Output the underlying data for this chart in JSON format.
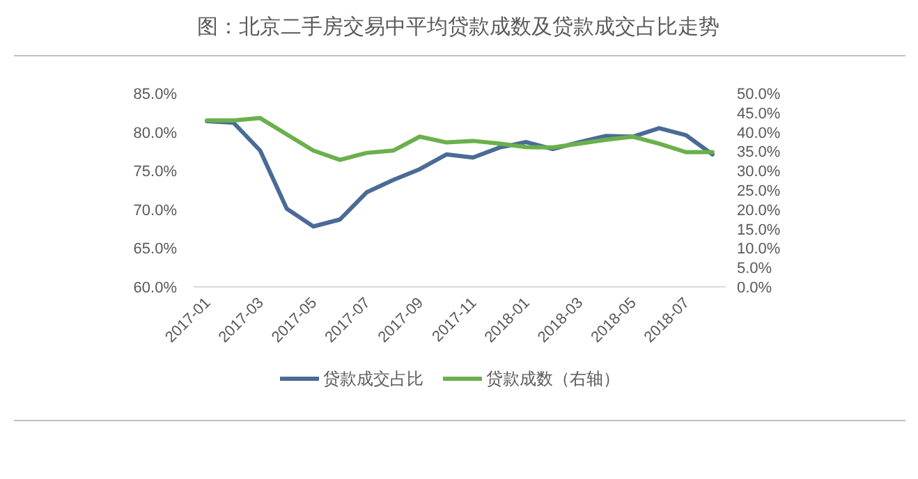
{
  "chart_data": {
    "type": "line",
    "title": "图：北京二手房交易中平均贷款成数及贷款成交占比走势",
    "categories": [
      "2017-01",
      null,
      "2017-03",
      null,
      "2017-05",
      null,
      "2017-07",
      null,
      "2017-09",
      null,
      "2017-11",
      null,
      "2018-01",
      null,
      "2018-03",
      null,
      "2018-05",
      null,
      "2018-07",
      null
    ],
    "series": [
      {
        "name": "贷款成交占比",
        "color": "#4a6b96",
        "values": [
          81.4,
          81.2,
          77.6,
          70.1,
          67.8,
          68.7,
          72.2,
          73.8,
          75.2,
          77.1,
          76.7,
          78.0,
          78.7,
          77.8,
          78.7,
          79.5,
          79.4,
          80.5,
          79.6,
          77.1
        ]
      },
      {
        "name": "贷款成数（右轴）",
        "color": "#6ab04c",
        "axis": "y2",
        "values": [
          43.0,
          43.0,
          43.6,
          39.4,
          35.2,
          32.8,
          34.6,
          35.2,
          38.8,
          37.3,
          37.7,
          37.0,
          36.1,
          36.0,
          37.0,
          38.0,
          38.8,
          37.0,
          34.8,
          34.8
        ]
      }
    ],
    "ylim": [
      60,
      85
    ],
    "yticks": [
      {
        "value": 60,
        "label": "60.0%"
      },
      {
        "value": 65,
        "label": "65.0%"
      },
      {
        "value": 70,
        "label": "70.0%"
      },
      {
        "value": 75,
        "label": "75.0%"
      },
      {
        "value": 80,
        "label": "80.0%"
      },
      {
        "value": 85,
        "label": "85.0%"
      }
    ],
    "y2lim": [
      0,
      50
    ],
    "y2ticks": [
      {
        "value": 0,
        "label": "0.0%"
      },
      {
        "value": 5,
        "label": "5.0%"
      },
      {
        "value": 10,
        "label": "10.0%"
      },
      {
        "value": 15,
        "label": "15.0%"
      },
      {
        "value": 20,
        "label": "20.0%"
      },
      {
        "value": 25,
        "label": "25.0%"
      },
      {
        "value": 30,
        "label": "30.0%"
      },
      {
        "value": 35,
        "label": "35.0%"
      },
      {
        "value": 40,
        "label": "40.0%"
      },
      {
        "value": 45,
        "label": "45.0%"
      },
      {
        "value": 50,
        "label": "50.0%"
      }
    ],
    "grid": false,
    "legend": "bottom",
    "marker": "none",
    "line_style": "solid"
  }
}
